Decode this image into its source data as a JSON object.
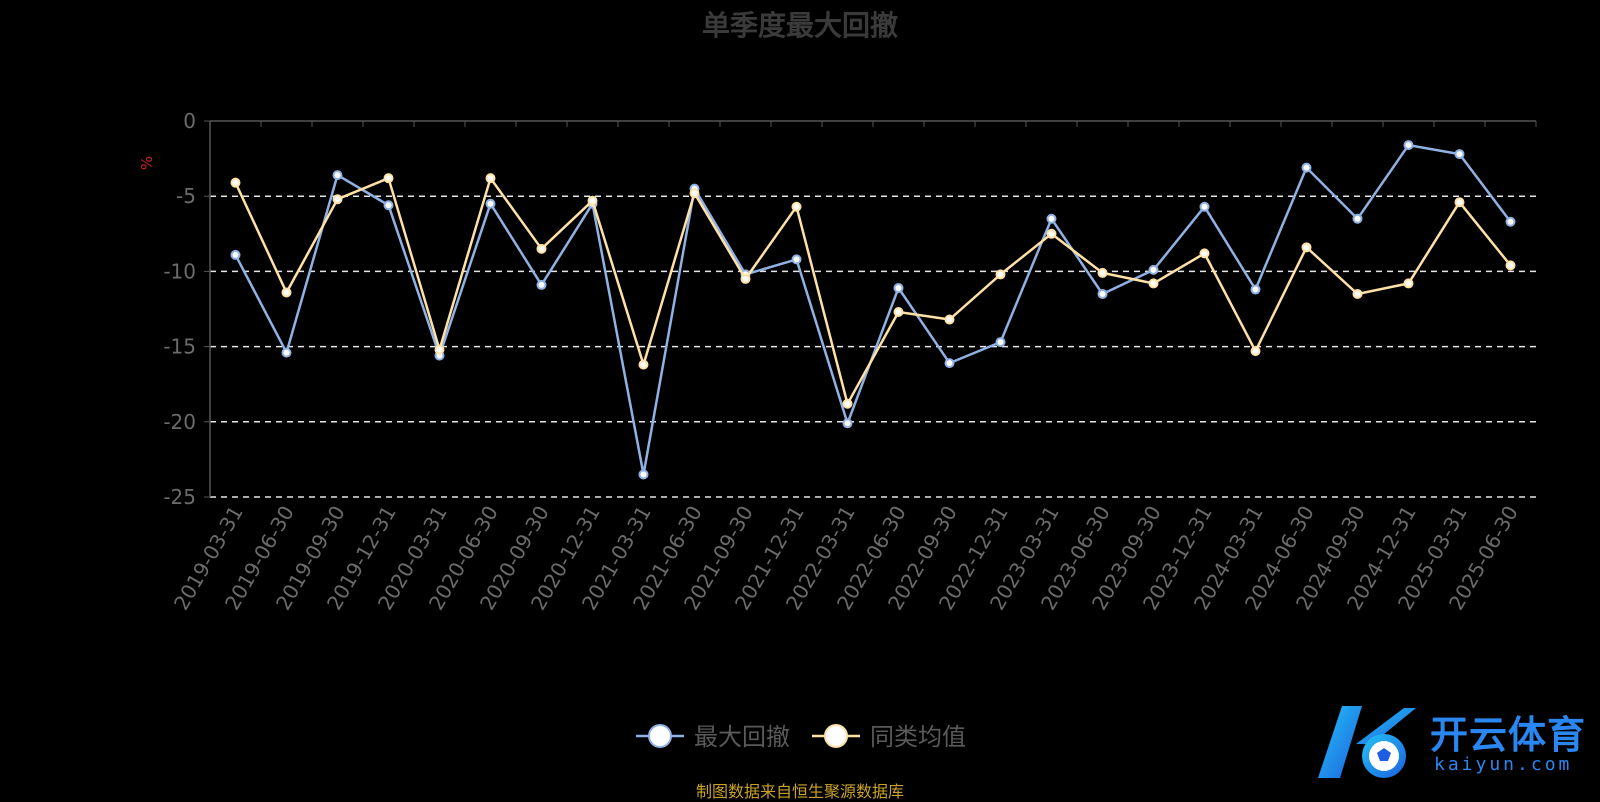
{
  "chart_data": {
    "type": "line",
    "title": "单季度最大回撤",
    "ylabel": "%",
    "ylim": [
      -25,
      0
    ],
    "yticks": [
      0,
      -5,
      -10,
      -15,
      -20,
      -25
    ],
    "grid": "horizontal dashed",
    "legend_position": "bottom-center",
    "x": [
      "2019-03-31",
      "2019-06-30",
      "2019-09-30",
      "2019-12-31",
      "2020-03-31",
      "2020-06-30",
      "2020-09-30",
      "2020-12-31",
      "2021-03-31",
      "2021-06-30",
      "2021-09-30",
      "2021-12-31",
      "2022-03-31",
      "2022-06-30",
      "2022-09-30",
      "2022-12-31",
      "2023-03-31",
      "2023-06-30",
      "2023-09-30",
      "2023-12-31",
      "2024-03-31",
      "2024-06-30",
      "2024-09-30",
      "2024-12-31",
      "2025-03-31",
      "2025-06-30"
    ],
    "series": [
      {
        "name": "最大回撤",
        "color": "#8fb1e3",
        "values": [
          -8.9,
          -15.4,
          -3.6,
          -5.6,
          -15.6,
          -5.5,
          -10.9,
          -5.5,
          -23.5,
          -4.5,
          -10.2,
          -9.2,
          -20.1,
          -11.1,
          -16.1,
          -14.7,
          -6.5,
          -11.5,
          -9.9,
          -5.7,
          -11.2,
          -3.1,
          -6.5,
          -1.6,
          -2.2,
          -6.7
        ]
      },
      {
        "name": "同类均值",
        "color": "#ffe0a6",
        "values": [
          -4.1,
          -11.4,
          -5.2,
          -3.8,
          -15.2,
          -3.8,
          -8.5,
          -5.3,
          -16.2,
          -4.8,
          -10.5,
          -5.7,
          -18.8,
          -12.7,
          -13.2,
          -10.2,
          -7.5,
          -10.1,
          -10.8,
          -8.8,
          -15.3,
          -8.4,
          -11.5,
          -10.8,
          -5.4,
          -9.6
        ]
      }
    ],
    "source_note": "制图数据来自恒生聚源数据库"
  },
  "watermark": {
    "cn": "开云体育",
    "en": "kaiyun.com"
  }
}
